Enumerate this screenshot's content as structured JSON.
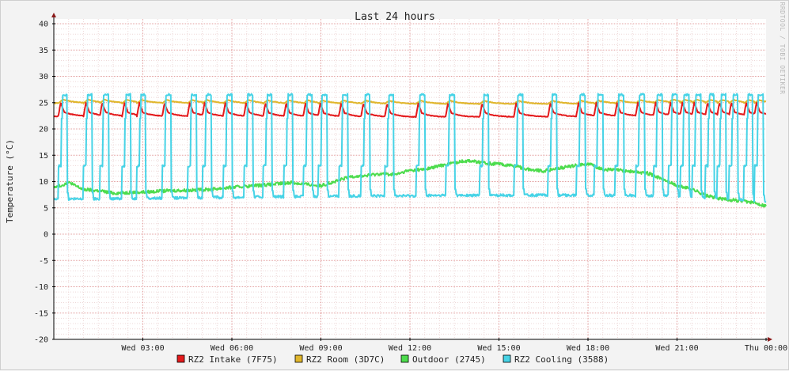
{
  "chart_data": {
    "type": "line",
    "title": "Last 24 hours",
    "ylabel": "Temperature (°C)",
    "watermark": "RRDTOOL / TOBI OETIKER",
    "ylim": [
      -20,
      40
    ],
    "xlim": [
      0,
      24
    ],
    "y_ticks": [
      40,
      35,
      30,
      25,
      20,
      15,
      10,
      5,
      0,
      -5,
      -10,
      -15,
      -20
    ],
    "x_ticks": [
      {
        "x": 3,
        "label": "Wed 03:00"
      },
      {
        "x": 6,
        "label": "Wed 06:00"
      },
      {
        "x": 9,
        "label": "Wed 09:00"
      },
      {
        "x": 12,
        "label": "Wed 12:00"
      },
      {
        "x": 15,
        "label": "Wed 15:00"
      },
      {
        "x": 18,
        "label": "Wed 18:00"
      },
      {
        "x": 21,
        "label": "Wed 21:00"
      },
      {
        "x": 24,
        "label": "Thu 00:00"
      }
    ],
    "grid": true,
    "legend_position": "bottom",
    "cycle_starts": [
      0.15,
      1.0,
      1.55,
      2.3,
      2.8,
      3.65,
      4.5,
      5.0,
      5.7,
      6.4,
      7.05,
      7.75,
      8.4,
      8.9,
      9.6,
      10.35,
      11.15,
      12.2,
      13.2,
      14.35,
      15.5,
      16.65,
      17.6,
      18.2,
      18.9,
      19.6,
      20.2,
      20.7,
      21.1,
      21.5,
      21.95,
      22.35,
      22.75,
      23.25,
      23.6
    ],
    "series": [
      {
        "name": "RZ2 Intake (7F75)",
        "color": "#e41a1c",
        "kind": "intake",
        "x": [
          0,
          6,
          12,
          18,
          21,
          24
        ],
        "y": [
          22.4,
          22.3,
          22.2,
          22.3,
          22.4,
          22.4
        ]
      },
      {
        "name": "RZ2 Room (3D7C)",
        "color": "#e0b62c",
        "kind": "room",
        "x": [
          0,
          6,
          12,
          18,
          21,
          24
        ],
        "y": [
          24.9,
          24.8,
          24.7,
          24.7,
          24.9,
          24.8
        ]
      },
      {
        "name": "Outdoor (2745)",
        "color": "#4ddc4d",
        "kind": "outdoor",
        "x": [
          0,
          0.5,
          1,
          1.5,
          2,
          3,
          4,
          5,
          6,
          7,
          8,
          9,
          9.5,
          10,
          10.5,
          11,
          11.5,
          12,
          12.5,
          13,
          13.5,
          14,
          14.5,
          15,
          15.5,
          16,
          16.5,
          17,
          17.5,
          18,
          18.5,
          19,
          19.5,
          20,
          20.5,
          21,
          21.5,
          22,
          22.5,
          23,
          23.5,
          24
        ],
        "y": [
          8.8,
          9.8,
          8.5,
          8.3,
          7.8,
          8.0,
          8.3,
          8.4,
          8.9,
          9.3,
          9.8,
          9.2,
          10.0,
          11.0,
          11.1,
          11.5,
          11.3,
          12.1,
          12.3,
          13.0,
          13.6,
          14.0,
          13.5,
          13.3,
          13.0,
          12.3,
          12.0,
          12.5,
          13.0,
          13.4,
          12.3,
          12.2,
          11.9,
          11.6,
          10.5,
          9.2,
          8.6,
          7.3,
          6.7,
          6.4,
          6.1,
          5.4
        ]
      },
      {
        "name": "RZ2 Cooling (3588)",
        "color": "#47d3e6",
        "kind": "cooling",
        "x": [
          0,
          3,
          6,
          9,
          12,
          15,
          18,
          21,
          22.5,
          24
        ],
        "y": [
          6.6,
          6.8,
          7.0,
          7.2,
          7.3,
          7.4,
          7.4,
          7.3,
          6.8,
          6.2
        ]
      }
    ]
  }
}
